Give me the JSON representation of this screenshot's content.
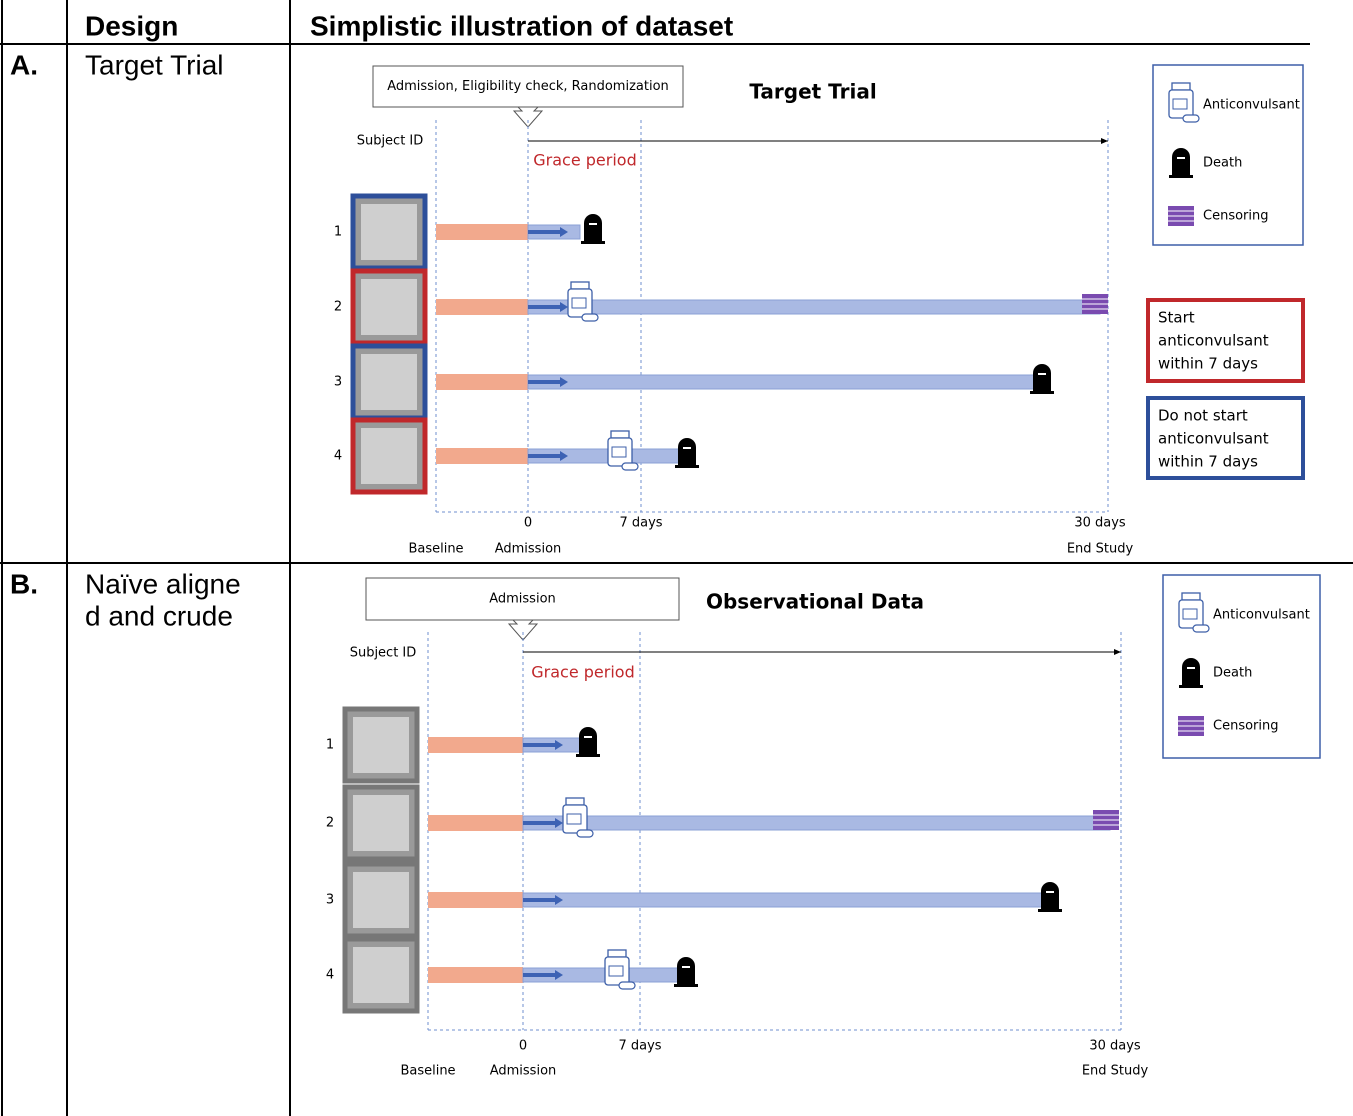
{
  "header": {
    "design": "Design",
    "illustration": "Simplistic illustration of dataset"
  },
  "rows": [
    {
      "label": "A.",
      "design_lines": [
        "Target Trial"
      ],
      "diagram": {
        "callout": "Admission, Eligibility check, Randomization",
        "title": "Target Trial",
        "subject_id": "Subject ID",
        "grace_period": "Grace period",
        "subjects": [
          "1",
          "2",
          "3",
          "4"
        ],
        "axis_ticks": [
          "0",
          "7 days",
          "30 days"
        ],
        "axis_labels": [
          "Baseline",
          "Admission",
          "End Study"
        ],
        "legend": [
          "Anticonvulsant",
          "Death",
          "Censoring"
        ],
        "arm_boxes": [
          [
            "Start",
            "anticonvulsant",
            "within 7 days"
          ],
          [
            "Do not start",
            "anticonvulsant",
            "within 7 days"
          ]
        ]
      }
    },
    {
      "label": "B.",
      "design_lines": [
        "Naïve aligne",
        "d and crude"
      ],
      "diagram": {
        "callout": "Admission",
        "title": "Observational Data",
        "subject_id": "Subject ID",
        "grace_period": "Grace period",
        "subjects": [
          "1",
          "2",
          "3",
          "4"
        ],
        "axis_ticks": [
          "0",
          "7 days",
          "30 days"
        ],
        "axis_labels": [
          "Baseline",
          "Admission",
          "End Study"
        ],
        "legend": [
          "Anticonvulsant",
          "Death",
          "Censoring"
        ]
      }
    }
  ]
}
